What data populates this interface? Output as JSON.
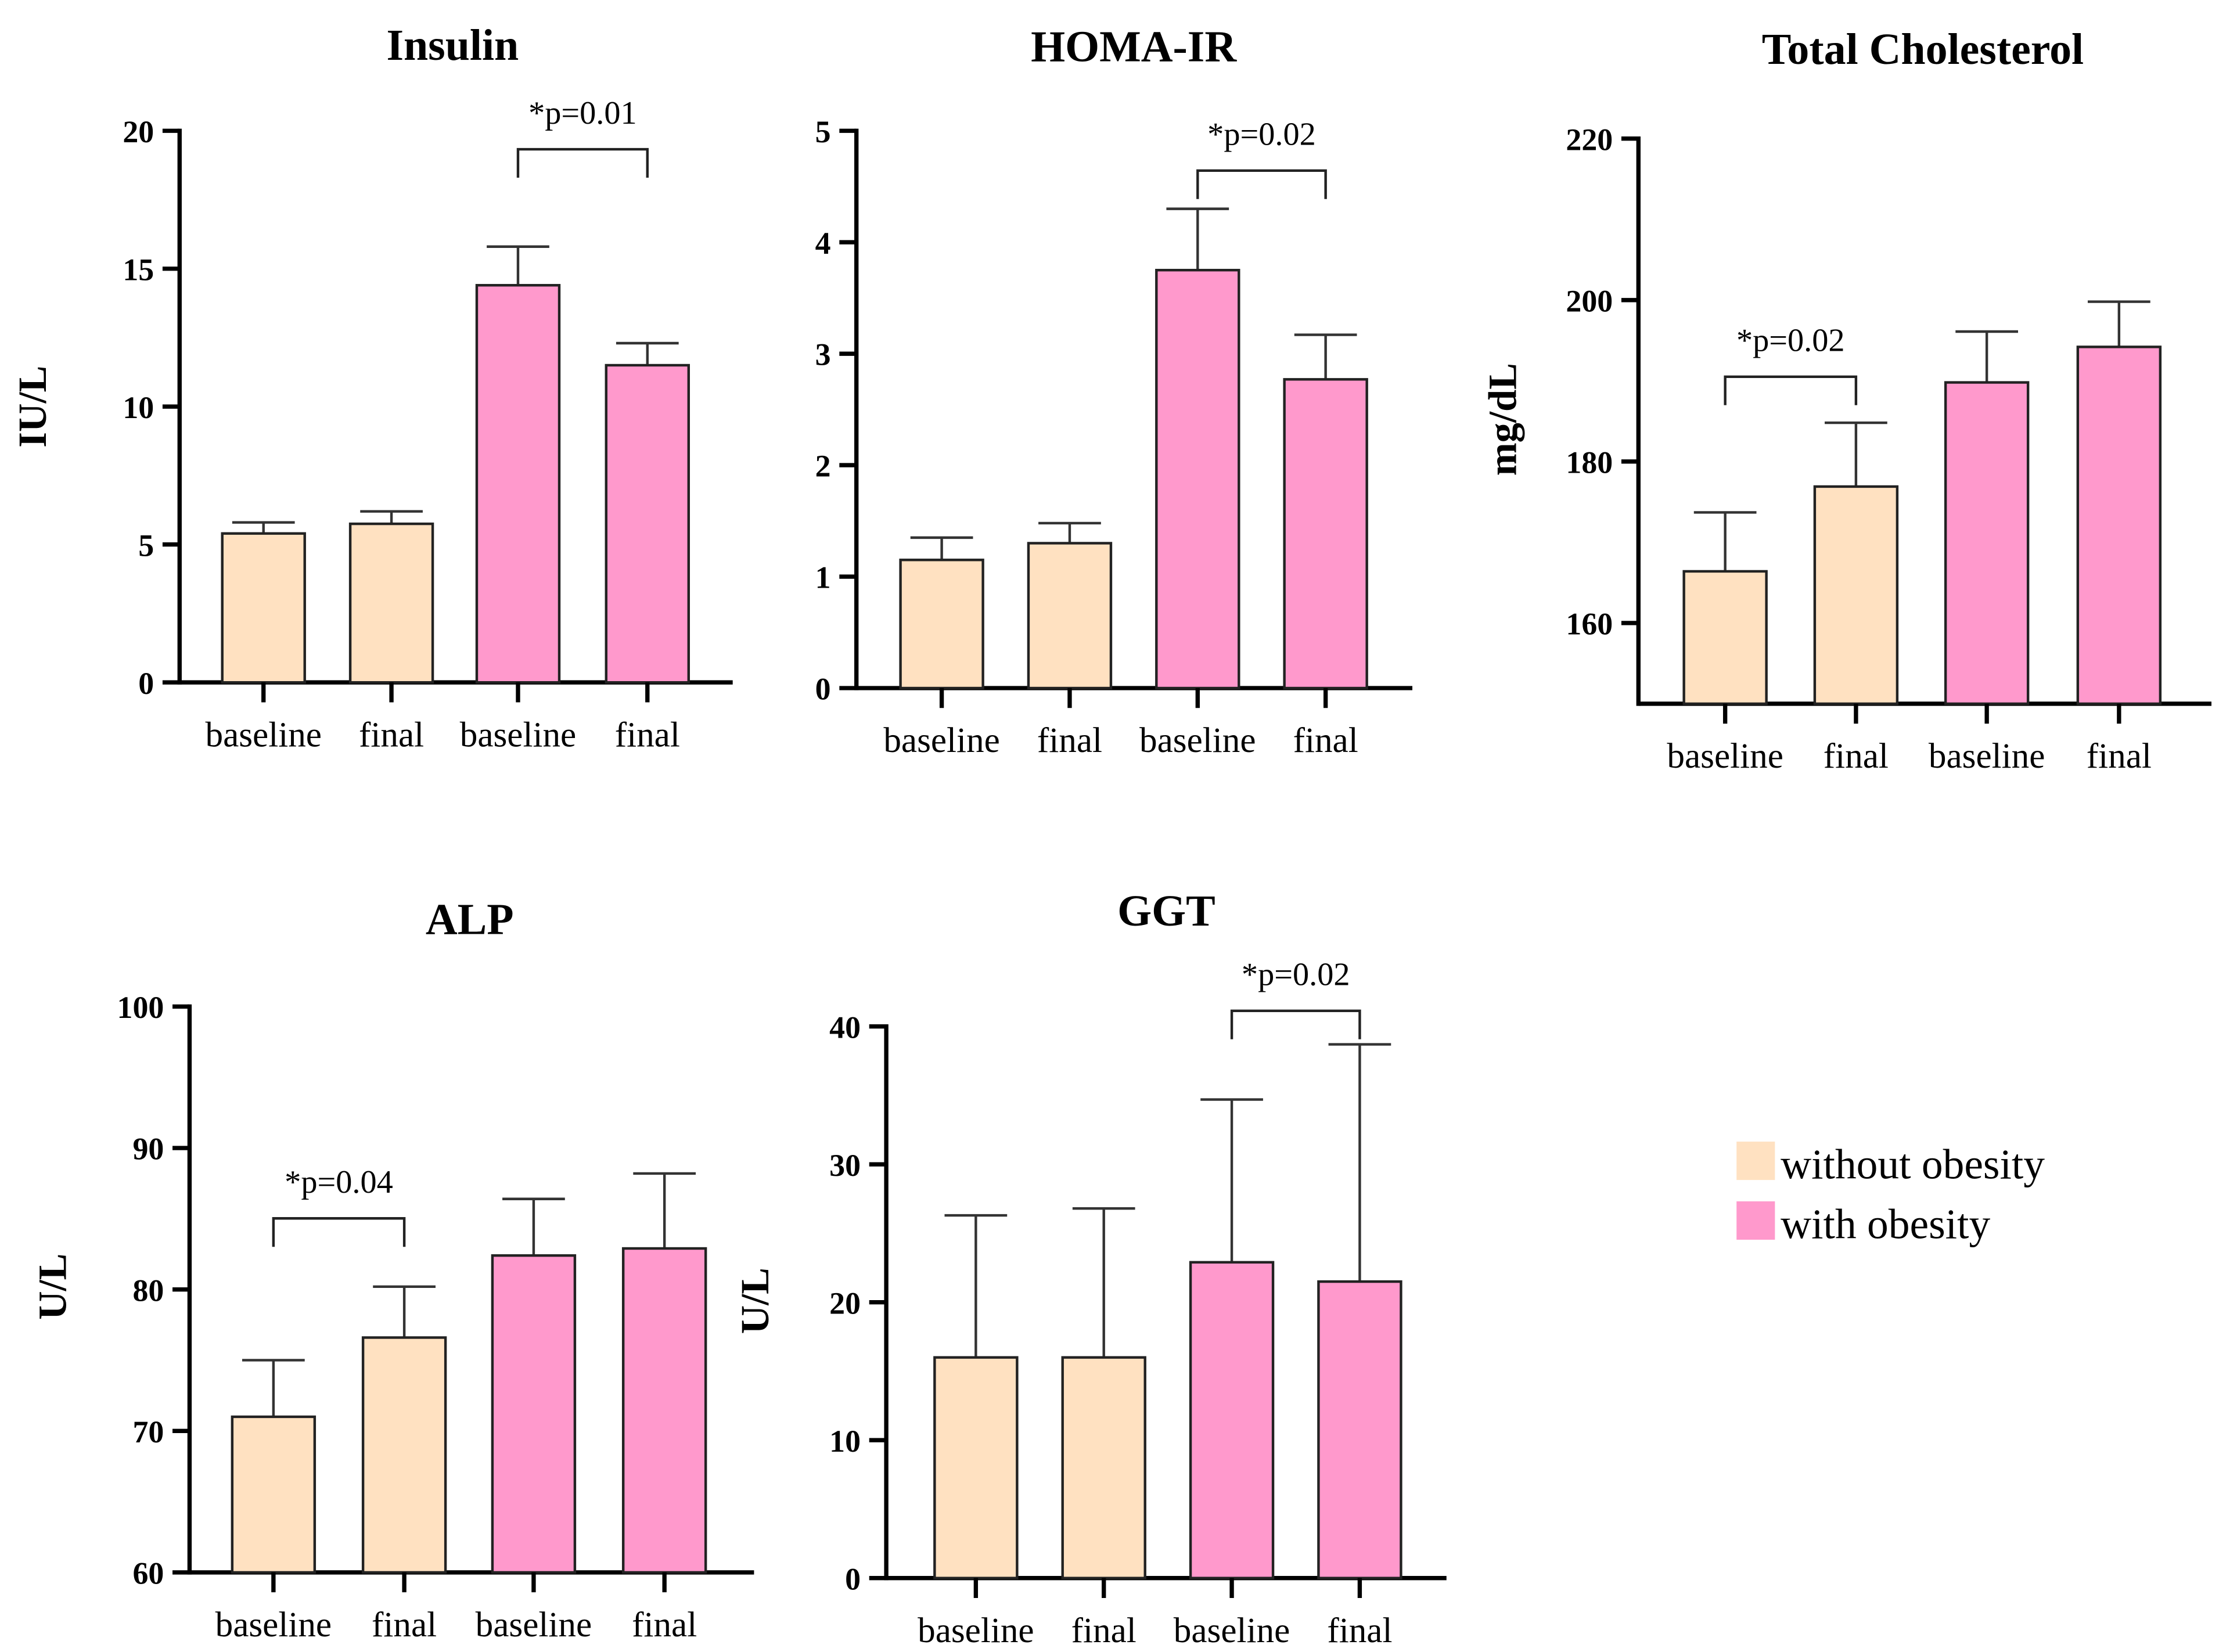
{
  "legend": [
    {
      "label": "without obesity",
      "color": "#FFE1C1"
    },
    {
      "label": "with obesity",
      "color": "#FF99CC"
    }
  ],
  "chart_data": [
    {
      "type": "bar",
      "title": "Insulin",
      "ylabel": "IU/L",
      "ylim": [
        0,
        20
      ],
      "yticks": [
        0,
        5,
        10,
        15,
        20
      ],
      "categories": [
        "baseline",
        "final",
        "baseline",
        "final"
      ],
      "groups": [
        "without obesity",
        "without obesity",
        "with obesity",
        "with obesity"
      ],
      "values": [
        5.4,
        5.75,
        14.4,
        11.5
      ],
      "errors": [
        0.4,
        0.45,
        1.4,
        0.8
      ],
      "annotation": {
        "text": "*p=0.01",
        "between": [
          2,
          3
        ]
      }
    },
    {
      "type": "bar",
      "title": "HOMA-IR",
      "ylabel": "",
      "ylim": [
        0,
        5
      ],
      "yticks": [
        0,
        1,
        2,
        3,
        4,
        5
      ],
      "categories": [
        "baseline",
        "final",
        "baseline",
        "final"
      ],
      "groups": [
        "without obesity",
        "without obesity",
        "with obesity",
        "with obesity"
      ],
      "values": [
        1.15,
        1.3,
        3.75,
        2.77
      ],
      "errors": [
        0.2,
        0.18,
        0.55,
        0.4
      ],
      "annotation": {
        "text": "*p=0.02",
        "between": [
          2,
          3
        ]
      }
    },
    {
      "type": "bar",
      "title": "Total Cholesterol",
      "ylabel": "mg/dL",
      "ylim": [
        150,
        220
      ],
      "yticks": [
        160,
        180,
        200,
        220
      ],
      "categories": [
        "baseline",
        "final",
        "baseline",
        "final"
      ],
      "groups": [
        "without obesity",
        "without obesity",
        "with obesity",
        "with obesity"
      ],
      "values": [
        166.4,
        176.9,
        189.8,
        194.2
      ],
      "errors": [
        7.3,
        7.9,
        6.3,
        5.6
      ],
      "annotation": {
        "text": "*p=0.02",
        "between": [
          0,
          1
        ]
      }
    },
    {
      "type": "bar",
      "title": "ALP",
      "ylabel": "U/L",
      "ylim": [
        60,
        100
      ],
      "yticks": [
        60,
        70,
        80,
        90,
        100
      ],
      "categories": [
        "baseline",
        "final",
        "baseline",
        "final"
      ],
      "groups": [
        "without obesity",
        "without obesity",
        "with obesity",
        "with obesity"
      ],
      "values": [
        71.0,
        76.6,
        82.4,
        82.9
      ],
      "errors": [
        4.0,
        3.6,
        4.0,
        5.3
      ],
      "annotation": {
        "text": "*p=0.04",
        "between": [
          0,
          1
        ]
      }
    },
    {
      "type": "bar",
      "title": "GGT",
      "ylabel": "U/L",
      "ylim": [
        0,
        40
      ],
      "yticks": [
        0,
        10,
        20,
        30,
        40
      ],
      "categories": [
        "baseline",
        "final",
        "baseline",
        "final"
      ],
      "groups": [
        "without obesity",
        "without obesity",
        "with obesity",
        "with obesity"
      ],
      "values": [
        16.0,
        16.0,
        22.9,
        21.5
      ],
      "errors": [
        10.3,
        10.8,
        11.8,
        17.2
      ],
      "annotation": {
        "text": "*p=0.02",
        "between": [
          2,
          3
        ]
      }
    }
  ]
}
